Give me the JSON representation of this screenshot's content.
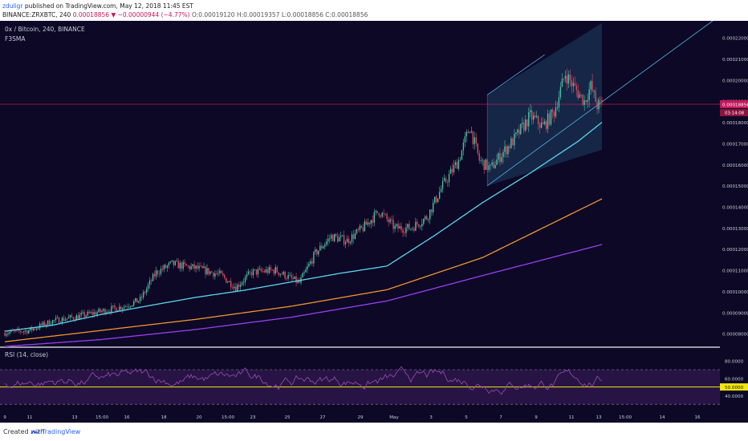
{
  "header": {
    "author": "zduligr",
    "published_text": "published on TradingView.com, May 12, 2018 11:45 EST",
    "ticker_line_prefix": "BINANCE:ZRXBTC, 240",
    "last_value": "0.00018856",
    "change": "▼ −0.00000944 (−4.77%)",
    "ohlc": "O:0.00019120 H:0.00019357 L:0.00018856 C:0.00018856"
  },
  "legend": {
    "symbol": "0x / Bitcoin, 240, BINANCE",
    "indicator": "F3SMA",
    "rsi": "RSI (14, close)"
  },
  "footer": {
    "created_with": "Created with",
    "brand": "TradingView"
  },
  "colors": {
    "background": "#0c0826",
    "up_candle": "#4fc0a4",
    "down_candle": "#e04a5f",
    "sma_fast": "#5ad6ef",
    "sma_mid": "#f0952e",
    "sma_slow": "#9b3ff0",
    "channel": "#4fb3e0",
    "price_line": "#c2185b",
    "rsi_line": "#9c4cb8",
    "rsi_midline": "#f2e60c"
  },
  "chart_data": {
    "type": "candlestick",
    "price_axis_ticks": [
      "0.00022000",
      "0.00021000",
      "0.00020000",
      "0.00019000",
      "0.00018000",
      "0.00017000",
      "0.00016000",
      "0.00015000",
      "0.00014000",
      "0.00013000",
      "0.00012000",
      "0.00011000",
      "0.00010000",
      "0.00009000",
      "0.00008000"
    ],
    "price_ylim": [
      7.4e-05,
      0.000228
    ],
    "last_price_label": "0.00018856",
    "countdown_label": "03:14:08",
    "rsi_axis_ticks": [
      "80.0000",
      "60.0000",
      "40.0000"
    ],
    "rsi_ylim": [
      20,
      95
    ],
    "rsi_current_label": "50.0000",
    "rsi_bands": [
      70,
      30
    ],
    "x_tick_labels": [
      "9",
      "11",
      "13",
      "15:00",
      "16",
      "18",
      "20",
      "15:00",
      "23",
      "25",
      "27",
      "29",
      "May",
      "3",
      "5",
      "7",
      "9",
      "11",
      "13",
      "15:00",
      "14",
      "16",
      "18"
    ],
    "sma_fast_key": [
      [
        0,
        8.12e-05
      ],
      [
        30,
        8.4e-05
      ],
      [
        60,
        8.9e-05
      ],
      [
        90,
        9.32e-05
      ],
      [
        120,
        9.72e-05
      ],
      [
        150,
        0.0001005
      ],
      [
        180,
        0.0001045
      ],
      [
        210,
        0.0001085
      ],
      [
        240,
        0.000112
      ],
      [
        270,
        0.0001265
      ],
      [
        300,
        0.000142
      ],
      [
        330,
        0.000156
      ],
      [
        360,
        0.000171
      ],
      [
        375,
        0.00018
      ]
    ],
    "sma_mid_key": [
      [
        0,
        7.62e-05
      ],
      [
        60,
        8.15e-05
      ],
      [
        120,
        8.68e-05
      ],
      [
        180,
        9.3e-05
      ],
      [
        240,
        0.0001008
      ],
      [
        300,
        0.000116
      ],
      [
        375,
        0.0001438
      ]
    ],
    "sma_slow_key": [
      [
        0,
        7.4e-05
      ],
      [
        60,
        7.72e-05
      ],
      [
        120,
        8.2e-05
      ],
      [
        180,
        8.78e-05
      ],
      [
        240,
        9.55e-05
      ],
      [
        300,
        0.0001075
      ],
      [
        375,
        0.0001222
      ]
    ],
    "channel": {
      "lower": [
        [
          0.00015,
          0.000167
        ],
        [
          0.00019,
          0.000223
        ]
      ],
      "upper": [
        [
          0.000193,
          0.000218
        ],
        [
          0.000209,
          0.00023
        ]
      ],
      "shade_start": 0.000193
    },
    "candle_count": 376
  }
}
